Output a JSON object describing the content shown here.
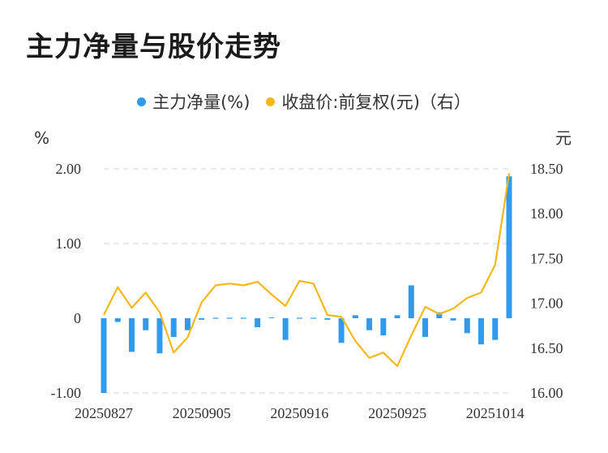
{
  "title": "主力净量与股价走势",
  "legend": {
    "series1": "主力净量(%)",
    "series2": "收盘价:前复权(元)（右）"
  },
  "colors": {
    "bar": "#2f9bef",
    "line": "#f5b81c",
    "grid": "#e3e3e3"
  },
  "chart_data": {
    "type": "bar+line",
    "left_axis": {
      "unit": "%",
      "min": -1.0,
      "max": 2.0,
      "ticks": [
        "2.00",
        "1.00",
        "0",
        "-1.00"
      ],
      "tick_values": [
        2,
        1,
        0,
        -1
      ]
    },
    "right_axis": {
      "unit": "元",
      "min": 16.0,
      "max": 18.5,
      "ticks": [
        "18.50",
        "18.00",
        "17.50",
        "17.00",
        "16.50",
        "16.00"
      ],
      "tick_values": [
        18.5,
        18.0,
        17.5,
        17.0,
        16.5,
        16.0
      ]
    },
    "x_labels": [
      "20250827",
      "20250905",
      "20250916",
      "20250925",
      "20251014"
    ],
    "x_label_indices": [
      0,
      7,
      14,
      21,
      28
    ],
    "n": 30,
    "series": [
      {
        "name": "主力净量(%)",
        "type": "bar",
        "values": [
          -1.0,
          -0.05,
          -0.45,
          -0.16,
          -0.47,
          -0.25,
          -0.16,
          -0.02,
          0.0,
          0.0,
          0.0,
          -0.12,
          0.01,
          -0.29,
          0.0,
          0.0,
          -0.02,
          -0.33,
          0.04,
          -0.16,
          -0.23,
          0.04,
          0.44,
          -0.25,
          0.08,
          -0.03,
          -0.2,
          -0.35,
          -0.29,
          1.9
        ]
      },
      {
        "name": "收盘价:前复权(元)（右）",
        "type": "line",
        "values": [
          16.87,
          17.18,
          16.95,
          17.12,
          16.9,
          16.45,
          16.62,
          17.01,
          17.2,
          17.22,
          17.2,
          17.24,
          17.1,
          16.97,
          17.25,
          17.22,
          16.87,
          16.85,
          16.58,
          16.39,
          16.45,
          16.3,
          16.64,
          16.96,
          16.88,
          16.94,
          17.06,
          17.12,
          17.43,
          18.45
        ]
      }
    ]
  }
}
